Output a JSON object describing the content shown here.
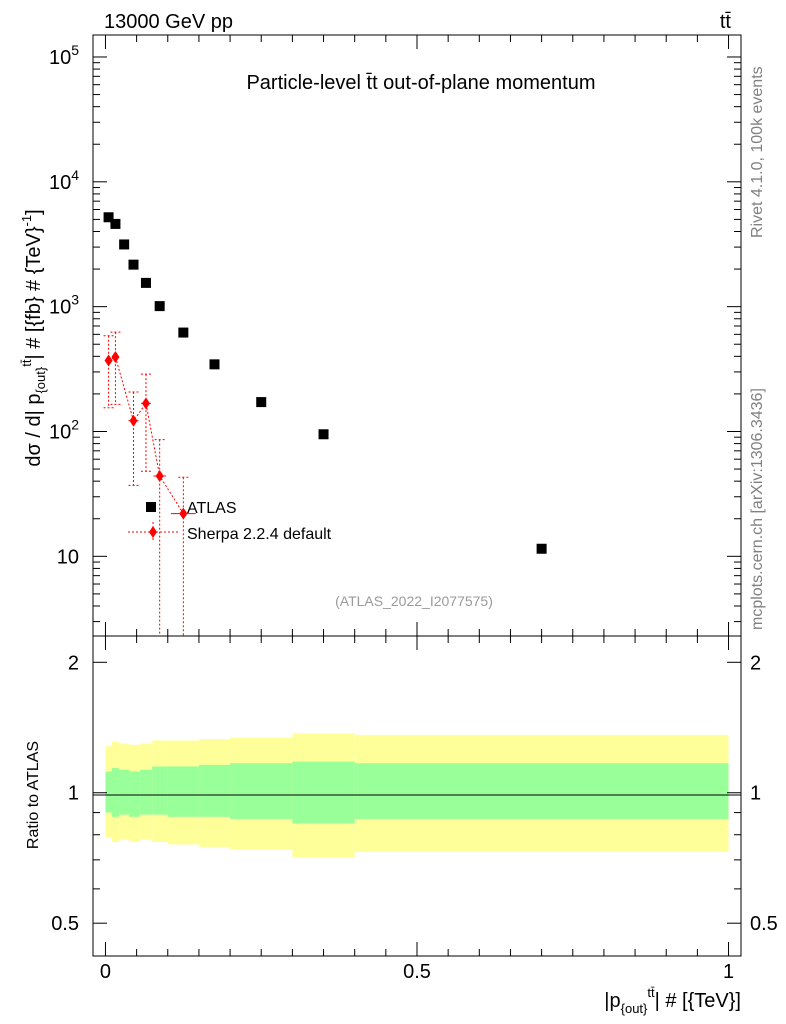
{
  "header": {
    "energy_label": "13000 GeV pp",
    "process_label": "tt̄"
  },
  "side_labels": {
    "rivet": "Rivet 4.1.0,  100k events",
    "mcplots": "mcplots.cern.ch [arXiv:1306.3436]"
  },
  "chart_data": [
    {
      "type": "scatter",
      "title": "Particle-level t̄t out-of-plane momentum",
      "ylabel": "dσ / d| p{out}tt̄| # [{fb} # {TeV}-1]",
      "xlabel": "|p{out}tt̄| # [{TeV}]",
      "xlim": [
        -0.02,
        1.02
      ],
      "ylim": [
        2.3,
        150000
      ],
      "yscale": "log",
      "ytick_labels": [
        "10",
        "10^2",
        "10^3",
        "10^4",
        "10^5"
      ],
      "xtick_labels": [
        "0",
        "0.5",
        "1"
      ],
      "watermark": "(ATLAS_2022_I2077575)",
      "series": [
        {
          "name": "ATLAS",
          "color": "#000000",
          "marker": "square",
          "x": [
            0.005,
            0.016,
            0.03,
            0.045,
            0.065,
            0.087,
            0.125,
            0.175,
            0.25,
            0.35,
            0.7
          ],
          "y": [
            5200,
            4600,
            3150,
            2170,
            1550,
            1010,
            620,
            345,
            172,
            95,
            11.5
          ]
        },
        {
          "name": "Sherpa 2.2.4 default",
          "color": "#ff0000",
          "marker": "diamond",
          "x": [
            0.005,
            0.016,
            0.045,
            0.065,
            0.087,
            0.125
          ],
          "y": [
            370,
            395,
            122,
            168,
            44,
            22
          ],
          "yerr_low": [
            215,
            230,
            85,
            120,
            42,
            21
          ],
          "yerr_high": [
            215,
            230,
            85,
            120,
            42,
            21
          ],
          "xerr": [
            0.005,
            0.006,
            0.008,
            0.008,
            0.01,
            0.02
          ]
        }
      ],
      "legend": {
        "position": "middle-center",
        "entries": [
          "ATLAS",
          "Sherpa 2.2.4 default"
        ]
      }
    },
    {
      "type": "area",
      "ylabel": "Ratio to ATLAS",
      "ylim": [
        0.42,
        2.3
      ],
      "ytick_labels": [
        "0.5",
        "1",
        "2"
      ],
      "reference_line": 1,
      "bin_edges": [
        0,
        0.01,
        0.022,
        0.038,
        0.055,
        0.075,
        0.1,
        0.15,
        0.2,
        0.3,
        0.4,
        1.0
      ],
      "bands": [
        {
          "name": "total uncertainty",
          "color": "#ffff99",
          "low": [
            0.79,
            0.77,
            0.78,
            0.77,
            0.78,
            0.77,
            0.76,
            0.75,
            0.74,
            0.71,
            0.73
          ],
          "high": [
            1.28,
            1.31,
            1.3,
            1.29,
            1.3,
            1.32,
            1.32,
            1.33,
            1.34,
            1.37,
            1.36
          ]
        },
        {
          "name": "statistical uncertainty",
          "color": "#99ff99",
          "low": [
            0.9,
            0.88,
            0.89,
            0.88,
            0.89,
            0.89,
            0.88,
            0.88,
            0.87,
            0.85,
            0.87
          ],
          "high": [
            1.12,
            1.14,
            1.13,
            1.12,
            1.13,
            1.15,
            1.15,
            1.16,
            1.17,
            1.18,
            1.17
          ]
        }
      ]
    }
  ]
}
